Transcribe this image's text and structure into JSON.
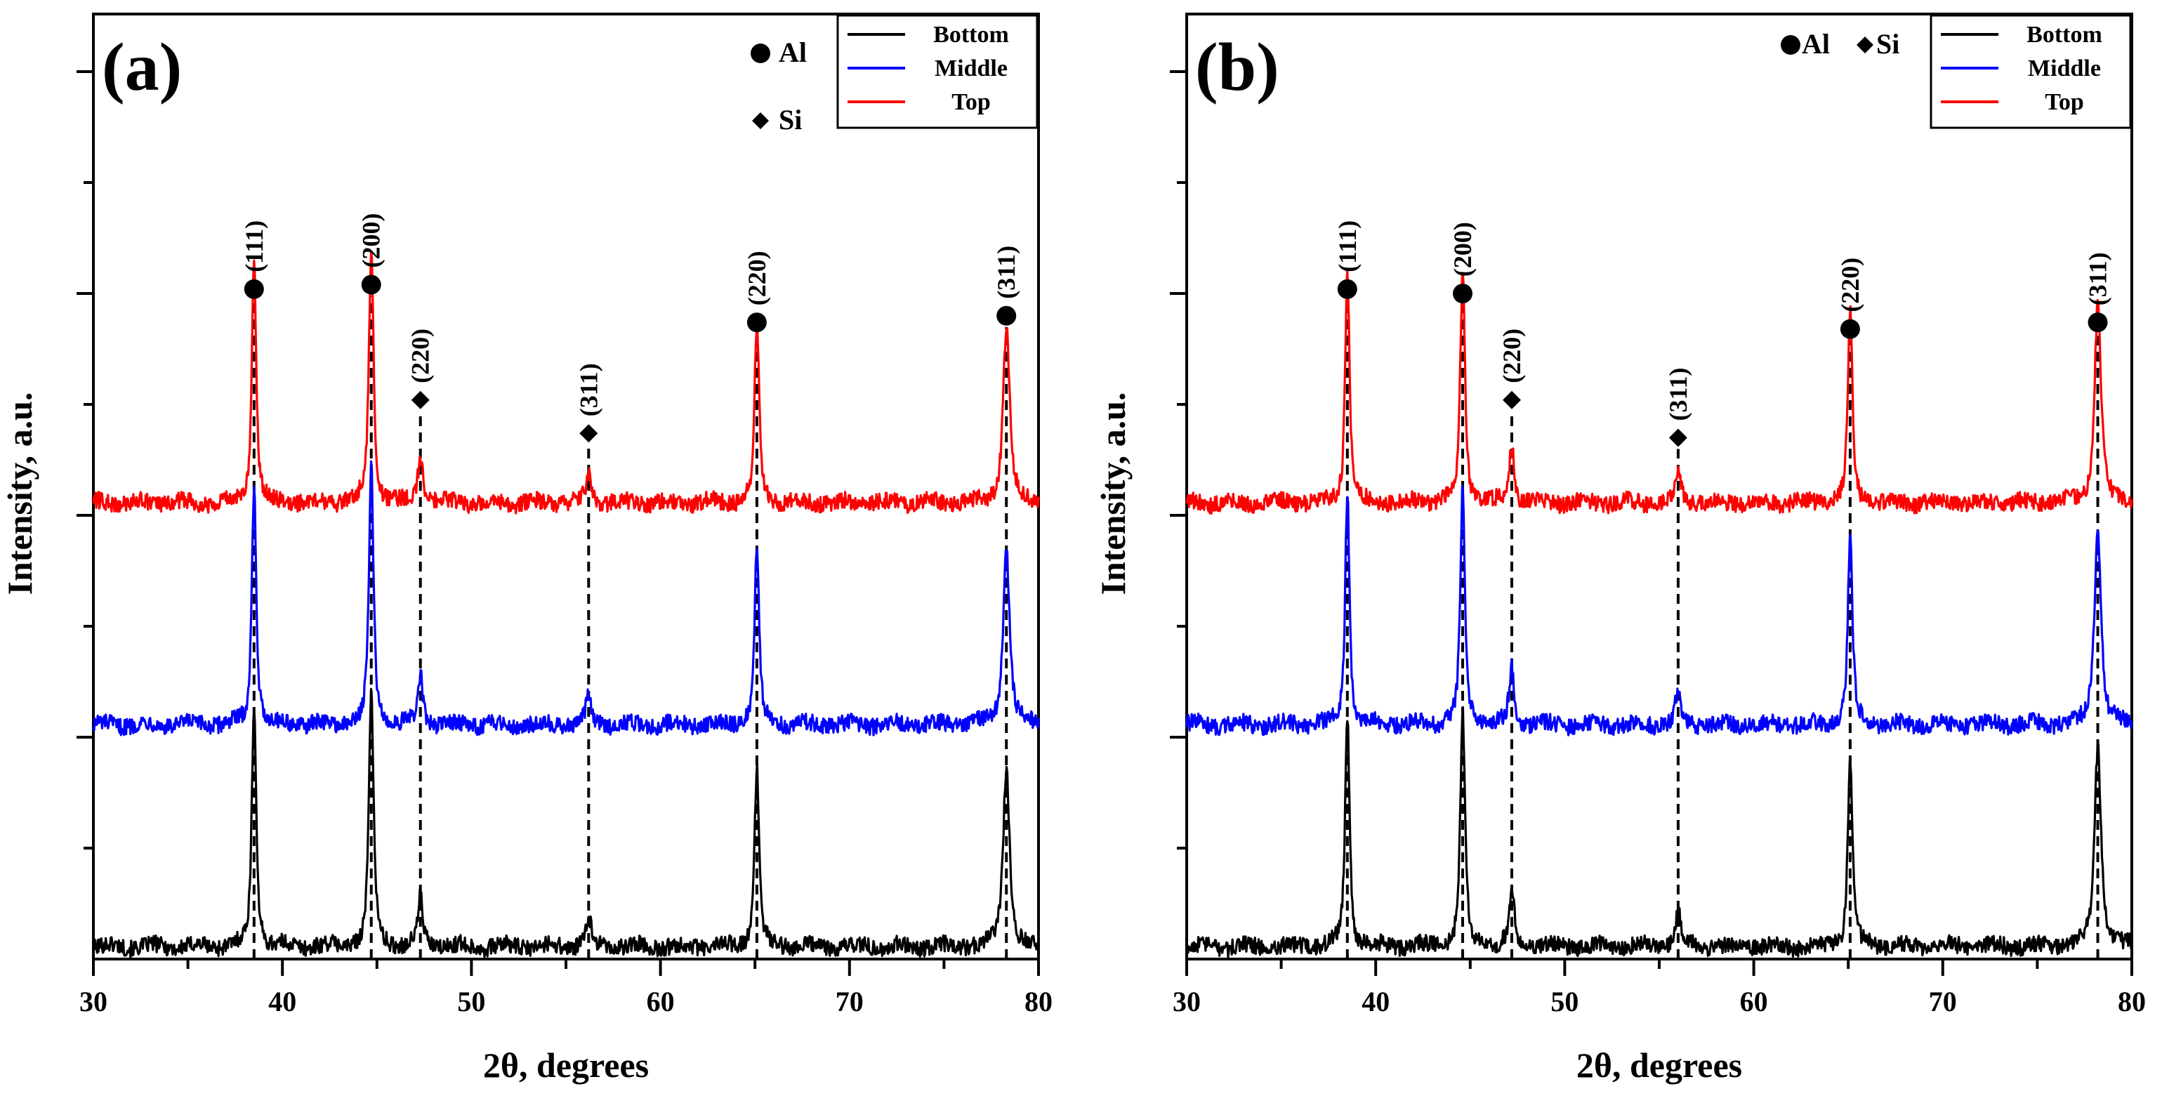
{
  "chart_data": [
    {
      "type": "line",
      "panel_label": "(a)",
      "xlabel": "2θ, degrees",
      "ylabel": "Intensity, a.u.",
      "xlim": [
        30,
        80
      ],
      "x_ticks": [
        "30",
        "40",
        "50",
        "60",
        "70",
        "80"
      ],
      "y_tick_labels": "none",
      "marker_legend": [
        {
          "symbol": "circle",
          "label": "Al"
        },
        {
          "symbol": "diamond",
          "label": "Si"
        }
      ],
      "marker_legend_layout": "stacked",
      "series": [
        {
          "name": "Bottom",
          "color": "#000000",
          "baseline": 0.0
        },
        {
          "name": "Middle",
          "color": "#0000ff",
          "baseline": 1.0
        },
        {
          "name": "Top",
          "color": "#ff0000",
          "baseline": 2.0
        }
      ],
      "peaks": [
        {
          "two_theta": 38.5,
          "phase": "Al",
          "hkl": "(111)",
          "height": 1.1,
          "width": 0.16
        },
        {
          "two_theta": 44.7,
          "phase": "Al",
          "hkl": "(200)",
          "height": 1.15,
          "width": 0.17
        },
        {
          "two_theta": 47.3,
          "phase": "Si",
          "hkl": "(220)",
          "height": 0.22,
          "width": 0.18
        },
        {
          "two_theta": 56.2,
          "phase": "Si",
          "hkl": "(311)",
          "height": 0.12,
          "width": 0.2
        },
        {
          "two_theta": 65.1,
          "phase": "Al",
          "hkl": "(220)",
          "height": 0.8,
          "width": 0.17
        },
        {
          "two_theta": 78.3,
          "phase": "Al",
          "hkl": "(311)",
          "height": 0.8,
          "width": 0.24
        }
      ],
      "label_positions": [
        2.95,
        2.97,
        2.45,
        2.3,
        2.8,
        2.83
      ]
    },
    {
      "type": "line",
      "panel_label": "(b)",
      "xlabel": "2θ, degrees",
      "ylabel": "Intensity, a.u.",
      "xlim": [
        30,
        80
      ],
      "x_ticks": [
        "30",
        "40",
        "50",
        "60",
        "70",
        "80"
      ],
      "y_tick_labels": "none",
      "marker_legend": [
        {
          "symbol": "circle",
          "label": "Al"
        },
        {
          "symbol": "diamond",
          "label": "Si"
        }
      ],
      "marker_legend_layout": "inline",
      "series": [
        {
          "name": "Bottom",
          "color": "#000000",
          "baseline": 0.0
        },
        {
          "name": "Middle",
          "color": "#0000ff",
          "baseline": 1.0
        },
        {
          "name": "Top",
          "color": "#ff0000",
          "baseline": 2.0
        }
      ],
      "peaks": [
        {
          "two_theta": 38.5,
          "phase": "Al",
          "hkl": "(111)",
          "height": 1.05,
          "width": 0.16
        },
        {
          "two_theta": 44.6,
          "phase": "Al",
          "hkl": "(200)",
          "height": 1.05,
          "width": 0.17
        },
        {
          "two_theta": 47.2,
          "phase": "Si",
          "hkl": "(220)",
          "height": 0.26,
          "width": 0.18
        },
        {
          "two_theta": 56.0,
          "phase": "Si",
          "hkl": "(311)",
          "height": 0.15,
          "width": 0.2
        },
        {
          "two_theta": 65.1,
          "phase": "Al",
          "hkl": "(220)",
          "height": 0.85,
          "width": 0.17
        },
        {
          "two_theta": 78.2,
          "phase": "Al",
          "hkl": "(311)",
          "height": 0.9,
          "width": 0.24
        }
      ],
      "label_positions": [
        2.95,
        2.93,
        2.45,
        2.28,
        2.77,
        2.8
      ]
    }
  ]
}
